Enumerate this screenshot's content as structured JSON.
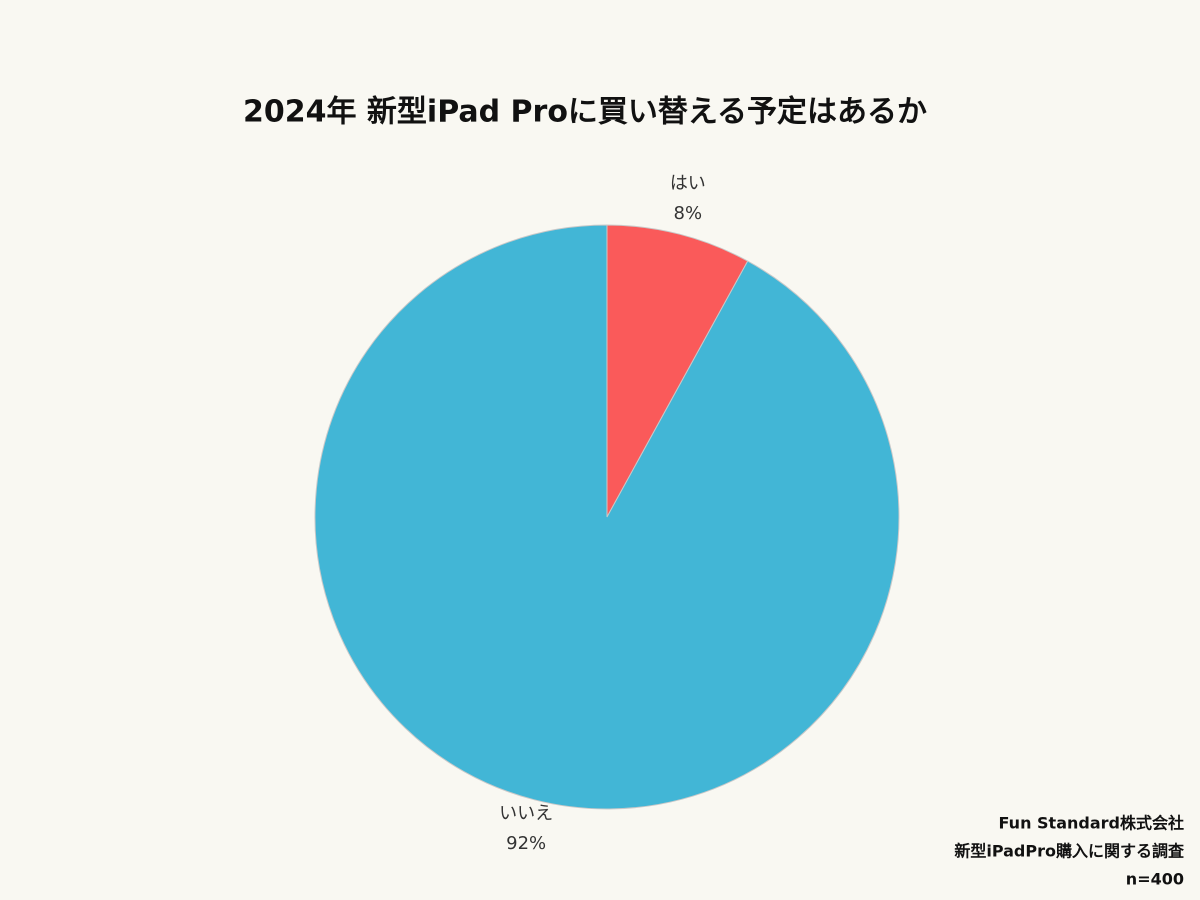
{
  "chart_data": {
    "type": "pie",
    "title": "2024年 新型iPad Proに買い替える予定はあるか",
    "categories": [
      "はい",
      "いいえ"
    ],
    "values": [
      8,
      92
    ],
    "value_labels": [
      "8%",
      "92%"
    ],
    "colors": [
      "#fa5a5a",
      "#42b6d6"
    ],
    "notes": [
      "Fun Standard株式会社",
      "新型iPadPro購入に関する調査",
      "n=400"
    ]
  }
}
